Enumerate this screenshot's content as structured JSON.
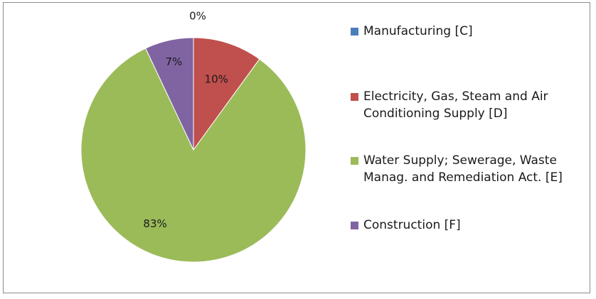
{
  "chart_data": {
    "type": "pie",
    "title": "",
    "legend_position": "right",
    "slices": [
      {
        "name": "Manufacturing [C]",
        "value": 0,
        "label": "0%",
        "color": "#4a7ebb"
      },
      {
        "name": "Electricity, Gas, Steam and Air Conditioning Supply [D]",
        "value": 10,
        "label": "10%",
        "color": "#c0504d"
      },
      {
        "name": "Water Supply; Sewerage, Waste Manag. and Remediation Act. [E]",
        "value": 83,
        "label": "83%",
        "color": "#9bbb59"
      },
      {
        "name": "Construction [F]",
        "value": 7,
        "label": "7%",
        "color": "#8064a2"
      }
    ]
  }
}
